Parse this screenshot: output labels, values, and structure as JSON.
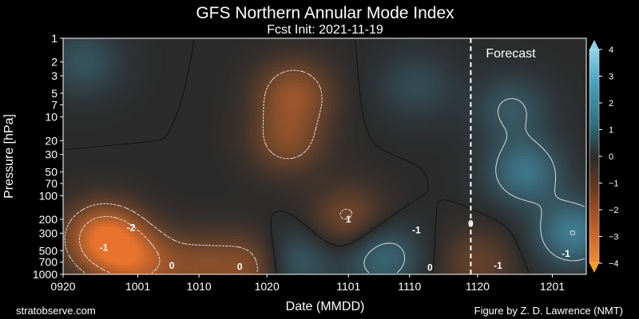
{
  "figure": {
    "title": "GFS Northern Annular Mode Index",
    "subtitle": "Fcst Init: 2021-11-19",
    "credit_left": "stratobserve.com",
    "credit_right": "Figure by Z. D. Lawrence (NMT)"
  },
  "chart_data": {
    "type": "heatmap",
    "title": "GFS Northern Annular Mode Index",
    "subtitle": "Fcst Init: 2021-11-19",
    "xlabel": "Date (MMDD)",
    "ylabel": "Pressure [hPa]",
    "x_tick_labels": [
      "0920",
      "1001",
      "1010",
      "1020",
      "1101",
      "1110",
      "1120",
      "1201"
    ],
    "x_tick_days": [
      0,
      11,
      20,
      30,
      42,
      51,
      61,
      72
    ],
    "x_range_days": [
      0,
      77
    ],
    "y_scale": "log",
    "y_inverted": true,
    "y_tick_labels": [
      "1",
      "2",
      "3",
      "5",
      "7",
      "10",
      "20",
      "30",
      "50",
      "70",
      "100",
      "200",
      "300",
      "500",
      "700",
      "1000"
    ],
    "y_range": [
      1,
      1000
    ],
    "forecast_start_day": 60,
    "annotation": "Forecast",
    "colorbar": {
      "min": -4,
      "max": 4,
      "tick_labels": [
        "4",
        "3",
        "2",
        "1",
        "0",
        "−1",
        "−2",
        "−3",
        "−4"
      ],
      "extend": "both",
      "negative_color": "#e8732c",
      "positive_color": "#4aa3c2",
      "neutral_color": "#2b2b2b"
    },
    "contour_labels": [
      "-1",
      "-2",
      "0",
      "0",
      "1",
      "-1",
      "0",
      "0",
      "-1",
      "-1"
    ],
    "features": [
      {
        "day": 6,
        "pressure": 350,
        "value": -2.9
      },
      {
        "day": 11,
        "pressure": 700,
        "value": -2.0
      },
      {
        "day": 20,
        "pressure": 800,
        "value": -1.2
      },
      {
        "day": 28,
        "pressure": 800,
        "value": -1.4
      },
      {
        "day": 34,
        "pressure": 5,
        "value": -1.6
      },
      {
        "day": 33,
        "pressure": 20,
        "value": -1.3
      },
      {
        "day": 42,
        "pressure": 200,
        "value": -1.2
      },
      {
        "day": 34,
        "pressure": 700,
        "value": 1.3
      },
      {
        "day": 47,
        "pressure": 600,
        "value": 1.5
      },
      {
        "day": 3,
        "pressure": 2,
        "value": 1.0
      },
      {
        "day": 52,
        "pressure": 4,
        "value": 0.8
      },
      {
        "day": 68,
        "pressure": 50,
        "value": 1.8
      },
      {
        "day": 75,
        "pressure": 300,
        "value": 2.0
      },
      {
        "day": 61,
        "pressure": 700,
        "value": -0.9
      },
      {
        "day": 66,
        "pressure": 8,
        "value": 1.1
      }
    ]
  }
}
